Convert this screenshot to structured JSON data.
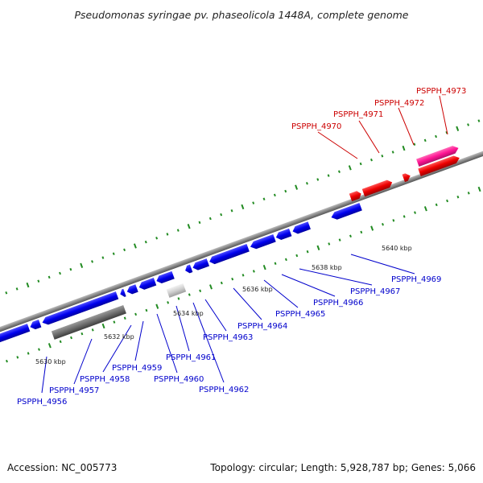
{
  "title": "Pseudomonas syringae pv. phaseolicola 1448A, complete genome",
  "footer": {
    "accession": "Accession: NC_005773",
    "summary": "Topology: circular; Length: 5,928,787 bp; Genes: 5,066"
  },
  "colors": {
    "forward_gene": "#ff0000",
    "reverse_gene": "#0000ff",
    "pseudo_gene": "#ff1493",
    "forward_label": "#cc0000",
    "reverse_label": "#0000cc",
    "tick": "#228b22",
    "backbone": "#888888",
    "leader_line_forward": "#cc0000",
    "leader_line_reverse": "#0000cc"
  },
  "scale": {
    "unit": "kbp",
    "labels": [
      "5630 kbp",
      "5632 kbp",
      "5634 kbp",
      "5636 kbp",
      "5638 kbp",
      "5640 kbp"
    ]
  },
  "genes": [
    {
      "id": "PSPPH_4956",
      "strand": "reverse"
    },
    {
      "id": "PSPPH_4957",
      "strand": "reverse"
    },
    {
      "id": "PSPPH_4958",
      "strand": "reverse"
    },
    {
      "id": "PSPPH_4959",
      "strand": "reverse"
    },
    {
      "id": "PSPPH_4960",
      "strand": "reverse"
    },
    {
      "id": "PSPPH_4961",
      "strand": "reverse"
    },
    {
      "id": "PSPPH_4962",
      "strand": "reverse"
    },
    {
      "id": "PSPPH_4963",
      "strand": "reverse"
    },
    {
      "id": "PSPPH_4964",
      "strand": "reverse"
    },
    {
      "id": "PSPPH_4965",
      "strand": "reverse"
    },
    {
      "id": "PSPPH_4966",
      "strand": "reverse"
    },
    {
      "id": "PSPPH_4967",
      "strand": "reverse"
    },
    {
      "id": "PSPPH_4969",
      "strand": "reverse"
    },
    {
      "id": "PSPPH_4970",
      "strand": "forward"
    },
    {
      "id": "PSPPH_4971",
      "strand": "forward"
    },
    {
      "id": "PSPPH_4972",
      "strand": "forward"
    },
    {
      "id": "PSPPH_4973",
      "strand": "forward"
    }
  ]
}
